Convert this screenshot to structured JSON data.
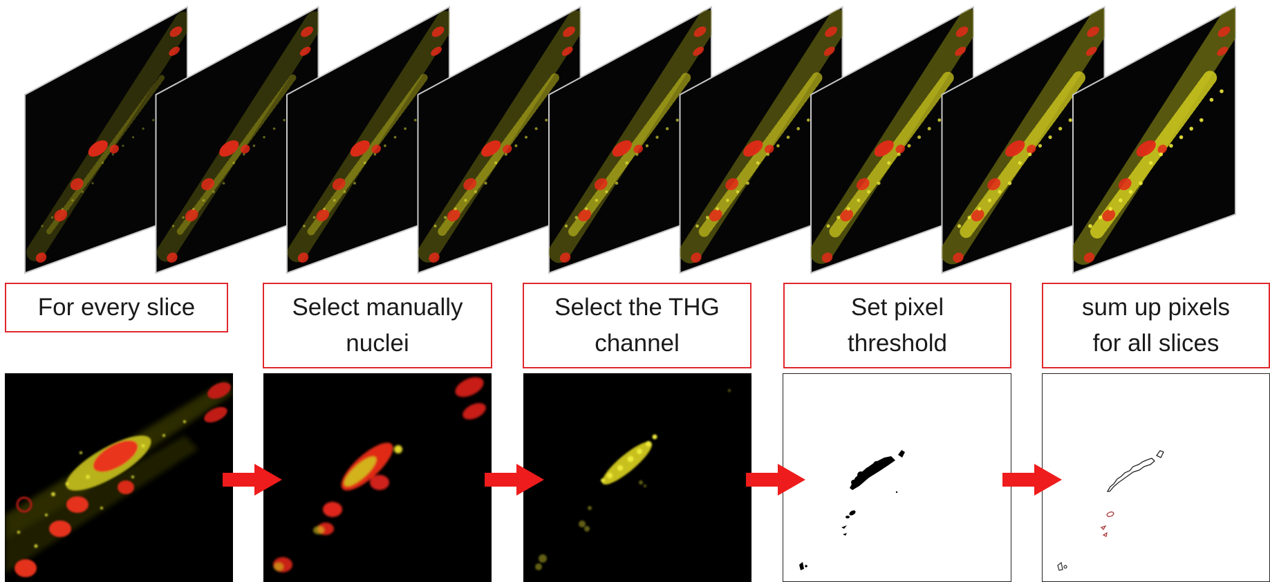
{
  "steps": [
    {
      "id": "every-slice",
      "label": "For every slice"
    },
    {
      "id": "select-nuclei",
      "label": "Select manually\nnuclei"
    },
    {
      "id": "thg-channel",
      "label": "Select the THG\nchannel"
    },
    {
      "id": "pixel-threshold",
      "label": "Set pixel\nthreshold"
    },
    {
      "id": "sum-pixels",
      "label": "sum up pixels\nfor all slices"
    }
  ],
  "stack": {
    "slice_count": 9
  },
  "panels": [
    {
      "id": "composite",
      "content": "yellow-red-composite"
    },
    {
      "id": "nuclei",
      "content": "red-nuclei-selection"
    },
    {
      "id": "thg",
      "content": "yellow-thg-channel"
    },
    {
      "id": "threshold",
      "content": "black-threshold-mask"
    },
    {
      "id": "sum",
      "content": "outline-contours"
    }
  ],
  "colors": {
    "arrow": "#ee1c1c",
    "label_border": "#e0262b",
    "nuclei_red": "#e8261c",
    "thg_yellow": "#dcdc2a",
    "panel_dark": "#000000"
  }
}
